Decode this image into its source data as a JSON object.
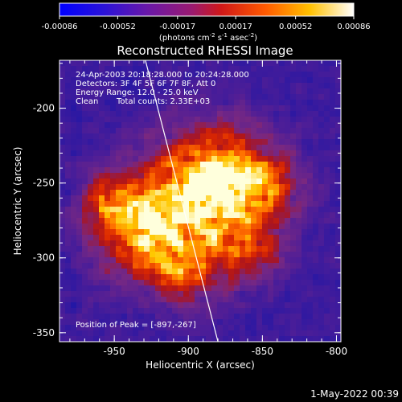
{
  "colorbar": {
    "ticks": [
      "-0.00086",
      "-0.00052",
      "-0.00017",
      "0.00017",
      "0.00052",
      "0.00086"
    ],
    "units_label": "(photons cm",
    "units_sup1": "-2",
    "units_mid": " s",
    "units_sup2": "-1",
    "units_mid2": " asec",
    "units_sup3": "-2",
    "units_end": ")"
  },
  "chart_data": {
    "type": "heatmap",
    "title": "Reconstructed RHESSI Image",
    "xlabel": "Heliocentric X (arcsec)",
    "ylabel": "Heliocentric Y (arcsec)",
    "xlim": [
      -987,
      -797
    ],
    "ylim": [
      -356,
      -168
    ],
    "xticks": [
      -950,
      -900,
      -850,
      -800
    ],
    "xtick_labels": [
      "-950",
      "-900",
      "-850",
      "-800"
    ],
    "yticks": [
      -350,
      -300,
      -250,
      -200
    ],
    "ytick_labels": [
      "-350",
      "-300",
      "-250",
      "-200"
    ],
    "colorbar_range": [
      -0.00086,
      0.00086
    ],
    "colormap": "red-temperature (blue-purple-red-orange-yellow-white)",
    "peak": [
      -897,
      -267
    ],
    "limb_line": [
      [
        -929,
        -168
      ],
      [
        -880,
        -356
      ]
    ],
    "annotations": {
      "time": "24-Apr-2003 20:18:28.000 to 20:24:28.000",
      "detectors": "Detectors: 3F 4F 5F 6F 7F 8F, Att 0",
      "energy": "Energy Range: 12.0 - 25.0 keV",
      "clean": "Clean",
      "counts": "Total counts: 2.33E+03",
      "peak_text": "Position of Peak = [-897,-267]"
    }
  },
  "footer": {
    "date": "1-May-2022 00:39"
  }
}
